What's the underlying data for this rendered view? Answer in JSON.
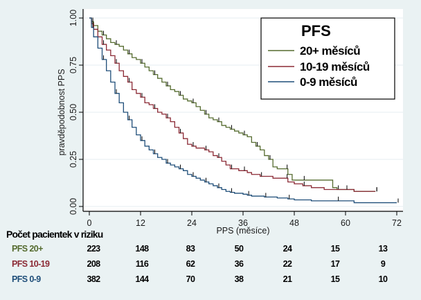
{
  "chart_data": {
    "type": "line",
    "subtype": "kaplan-meier",
    "title": "",
    "xlabel": "PPS (měsíce)",
    "ylabel": "pravděpodobnost PPS",
    "xlim": [
      0,
      72
    ],
    "ylim": [
      0,
      1
    ],
    "x_ticks": [
      "0",
      "12",
      "24",
      "36",
      "48",
      "60",
      "72"
    ],
    "y_ticks": [
      "0.00",
      "0.25",
      "0.50",
      "0.75",
      "1.00"
    ],
    "grid": "horizontal",
    "legend": {
      "title": "PFS",
      "placement": "top-right",
      "entries": [
        "20+ měsíců",
        "10-19 měsíců",
        "0-9 měsíců"
      ]
    },
    "series": [
      {
        "name": "20+ měsíců",
        "color": "#556b2f",
        "points": [
          [
            0,
            1.0
          ],
          [
            0.5,
            0.98
          ],
          [
            1,
            0.96
          ],
          [
            2,
            0.93
          ],
          [
            3,
            0.91
          ],
          [
            4,
            0.89
          ],
          [
            5,
            0.87
          ],
          [
            6,
            0.86
          ],
          [
            7,
            0.85
          ],
          [
            8,
            0.83
          ],
          [
            9,
            0.81
          ],
          [
            10,
            0.79
          ],
          [
            11,
            0.78
          ],
          [
            12,
            0.76
          ],
          [
            13,
            0.74
          ],
          [
            14,
            0.72
          ],
          [
            15,
            0.7
          ],
          [
            16,
            0.68
          ],
          [
            17,
            0.66
          ],
          [
            18,
            0.64
          ],
          [
            19,
            0.62
          ],
          [
            20,
            0.61
          ],
          [
            21,
            0.59
          ],
          [
            22,
            0.57
          ],
          [
            23,
            0.56
          ],
          [
            24,
            0.55
          ],
          [
            25,
            0.53
          ],
          [
            26,
            0.51
          ],
          [
            27,
            0.49
          ],
          [
            28,
            0.47
          ],
          [
            29,
            0.46
          ],
          [
            30,
            0.45
          ],
          [
            31,
            0.43
          ],
          [
            32,
            0.42
          ],
          [
            33,
            0.41
          ],
          [
            34,
            0.4
          ],
          [
            35,
            0.39
          ],
          [
            36,
            0.38
          ],
          [
            37,
            0.37
          ],
          [
            38,
            0.34
          ],
          [
            39,
            0.32
          ],
          [
            40,
            0.3
          ],
          [
            41,
            0.27
          ],
          [
            42,
            0.25
          ],
          [
            43,
            0.21
          ],
          [
            44,
            0.2
          ],
          [
            46,
            0.2
          ],
          [
            46.5,
            0.17
          ],
          [
            47.5,
            0.14
          ],
          [
            50,
            0.14
          ],
          [
            56,
            0.14
          ],
          [
            57,
            0.1
          ],
          [
            58,
            0.09
          ],
          [
            60,
            0.09
          ],
          [
            62,
            0.08
          ],
          [
            67,
            0.08
          ]
        ]
      },
      {
        "name": "10-19 měsíců",
        "color": "#8b2a35",
        "points": [
          [
            0,
            1.0
          ],
          [
            0.5,
            0.97
          ],
          [
            1,
            0.94
          ],
          [
            2,
            0.9
          ],
          [
            3,
            0.86
          ],
          [
            4,
            0.83
          ],
          [
            5,
            0.8
          ],
          [
            6,
            0.76
          ],
          [
            7,
            0.72
          ],
          [
            8,
            0.69
          ],
          [
            9,
            0.66
          ],
          [
            10,
            0.62
          ],
          [
            11,
            0.6
          ],
          [
            12,
            0.58
          ],
          [
            13,
            0.55
          ],
          [
            14,
            0.54
          ],
          [
            15,
            0.52
          ],
          [
            16,
            0.5
          ],
          [
            17,
            0.49
          ],
          [
            18,
            0.47
          ],
          [
            19,
            0.45
          ],
          [
            20,
            0.42
          ],
          [
            21,
            0.39
          ],
          [
            22,
            0.36
          ],
          [
            23,
            0.33
          ],
          [
            24,
            0.32
          ],
          [
            25,
            0.31
          ],
          [
            26,
            0.31
          ],
          [
            27,
            0.3
          ],
          [
            28,
            0.29
          ],
          [
            29,
            0.27
          ],
          [
            30,
            0.26
          ],
          [
            31,
            0.24
          ],
          [
            32,
            0.22
          ],
          [
            33,
            0.2
          ],
          [
            34,
            0.2
          ],
          [
            35,
            0.19
          ],
          [
            36,
            0.19
          ],
          [
            37,
            0.18
          ],
          [
            38,
            0.17
          ],
          [
            40,
            0.16
          ],
          [
            42,
            0.16
          ],
          [
            43,
            0.15
          ],
          [
            46,
            0.15
          ],
          [
            46.5,
            0.13
          ],
          [
            48,
            0.12
          ],
          [
            50,
            0.11
          ],
          [
            52,
            0.1
          ],
          [
            55,
            0.09
          ],
          [
            60,
            0.09
          ],
          [
            62,
            0.08
          ],
          [
            65,
            0.08
          ],
          [
            67,
            0.08
          ]
        ]
      },
      {
        "name": "0-9 měsíců",
        "color": "#1f4e79",
        "points": [
          [
            0,
            1.0
          ],
          [
            0.5,
            0.95
          ],
          [
            1,
            0.9
          ],
          [
            2,
            0.84
          ],
          [
            3,
            0.78
          ],
          [
            4,
            0.72
          ],
          [
            5,
            0.66
          ],
          [
            6,
            0.6
          ],
          [
            7,
            0.55
          ],
          [
            8,
            0.5
          ],
          [
            9,
            0.46
          ],
          [
            10,
            0.42
          ],
          [
            11,
            0.38
          ],
          [
            12,
            0.35
          ],
          [
            13,
            0.32
          ],
          [
            14,
            0.3
          ],
          [
            15,
            0.28
          ],
          [
            16,
            0.26
          ],
          [
            17,
            0.25
          ],
          [
            18,
            0.23
          ],
          [
            19,
            0.22
          ],
          [
            20,
            0.21
          ],
          [
            21,
            0.2
          ],
          [
            22,
            0.19
          ],
          [
            23,
            0.17
          ],
          [
            24,
            0.16
          ],
          [
            25,
            0.15
          ],
          [
            26,
            0.14
          ],
          [
            27,
            0.13
          ],
          [
            28,
            0.12
          ],
          [
            29,
            0.11
          ],
          [
            30,
            0.1
          ],
          [
            31,
            0.09
          ],
          [
            32,
            0.08
          ],
          [
            33,
            0.075
          ],
          [
            34,
            0.07
          ],
          [
            36,
            0.065
          ],
          [
            37,
            0.06
          ],
          [
            38,
            0.055
          ],
          [
            40,
            0.055
          ],
          [
            41,
            0.05
          ],
          [
            44,
            0.045
          ],
          [
            46,
            0.045
          ],
          [
            46.5,
            0.04
          ],
          [
            48,
            0.035
          ],
          [
            52,
            0.03
          ],
          [
            58,
            0.03
          ],
          [
            62,
            0.02
          ],
          [
            67,
            0.02
          ],
          [
            72,
            0.02
          ]
        ]
      }
    ]
  },
  "risk_table": {
    "title": "Počet pacientek v riziku",
    "timepoints": [
      0,
      12,
      24,
      36,
      48,
      60,
      72
    ],
    "rows": [
      {
        "label": "PFS 20+",
        "color": "#556b2f",
        "values": [
          "223",
          "148",
          "83",
          "50",
          "24",
          "15",
          "13"
        ]
      },
      {
        "label": "PFS 10-19",
        "color": "#8b2a35",
        "values": [
          "208",
          "116",
          "62",
          "36",
          "22",
          "17",
          "9"
        ]
      },
      {
        "label": "PFS 0-9",
        "color": "#1f4e79",
        "values": [
          "382",
          "144",
          "70",
          "38",
          "21",
          "15",
          "10"
        ]
      }
    ]
  }
}
